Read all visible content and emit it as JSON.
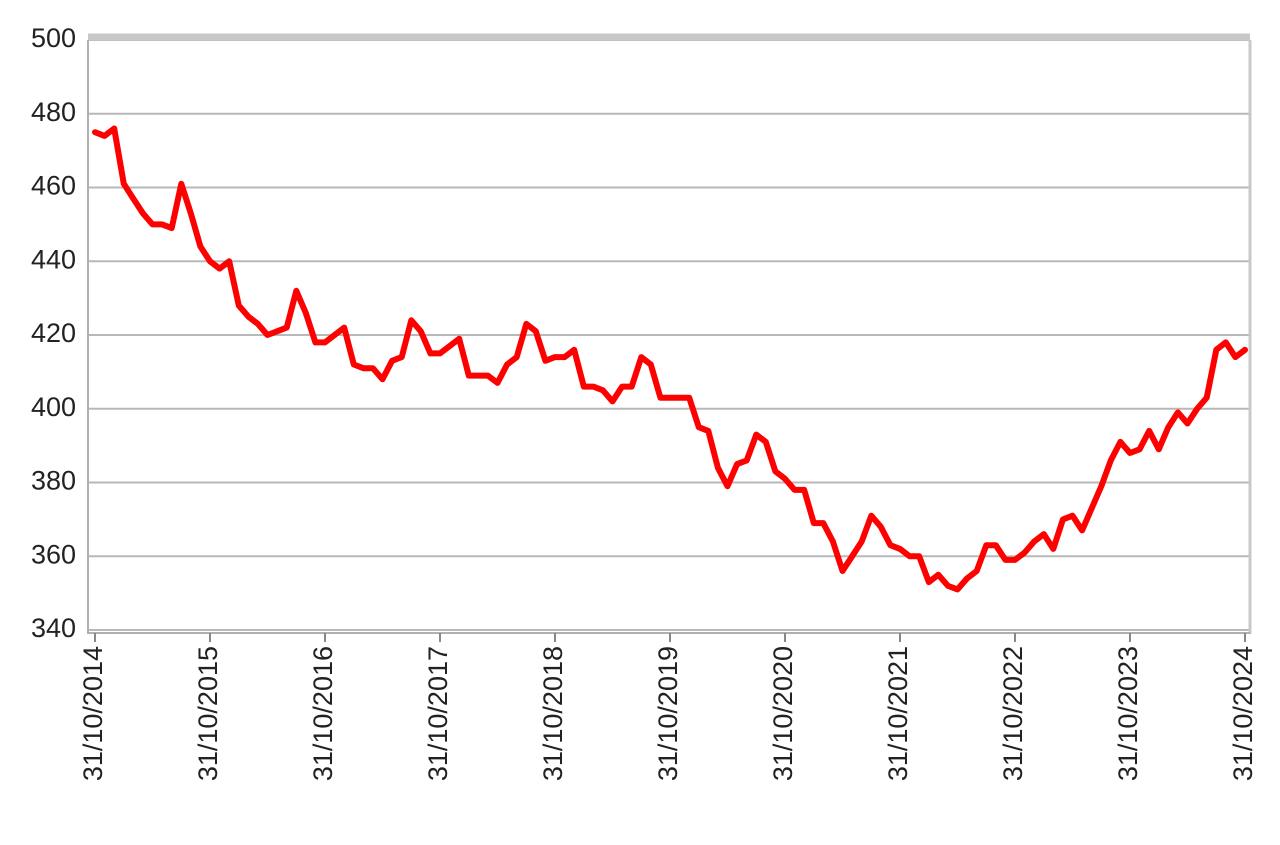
{
  "chart_data": {
    "type": "line",
    "categories": [
      "31/10/2014",
      null,
      null,
      null,
      null,
      null,
      null,
      null,
      null,
      null,
      null,
      null,
      "31/10/2015",
      null,
      null,
      null,
      null,
      null,
      null,
      null,
      null,
      null,
      null,
      null,
      "31/10/2016",
      null,
      null,
      null,
      null,
      null,
      null,
      null,
      null,
      null,
      null,
      null,
      "31/10/2017",
      null,
      null,
      null,
      null,
      null,
      null,
      null,
      null,
      null,
      null,
      null,
      "31/10/2018",
      null,
      null,
      null,
      null,
      null,
      null,
      null,
      null,
      null,
      null,
      null,
      "31/10/2019",
      null,
      null,
      null,
      null,
      null,
      null,
      null,
      null,
      null,
      null,
      null,
      "31/10/2020",
      null,
      null,
      null,
      null,
      null,
      null,
      null,
      null,
      null,
      null,
      null,
      "31/10/2021",
      null,
      null,
      null,
      null,
      null,
      null,
      null,
      null,
      null,
      null,
      null,
      "31/10/2022",
      null,
      null,
      null,
      null,
      null,
      null,
      null,
      null,
      null,
      null,
      null,
      "31/10/2023",
      null,
      null,
      null,
      null,
      null,
      null,
      null,
      null,
      null,
      null,
      null,
      "31/10/2024"
    ],
    "values": [
      475,
      474,
      476,
      461,
      457,
      453,
      450,
      450,
      449,
      461,
      453,
      444,
      440,
      438,
      440,
      428,
      425,
      423,
      420,
      421,
      422,
      432,
      426,
      418,
      418,
      420,
      422,
      412,
      411,
      411,
      408,
      413,
      414,
      424,
      421,
      415,
      415,
      417,
      419,
      409,
      409,
      409,
      407,
      412,
      414,
      423,
      421,
      413,
      414,
      414,
      416,
      406,
      406,
      405,
      402,
      406,
      406,
      414,
      412,
      403,
      403,
      403,
      403,
      395,
      394,
      384,
      379,
      385,
      386,
      393,
      391,
      383,
      381,
      378,
      378,
      369,
      369,
      364,
      356,
      360,
      364,
      371,
      368,
      363,
      362,
      360,
      360,
      353,
      355,
      352,
      351,
      354,
      356,
      363,
      363,
      359,
      359,
      361,
      364,
      366,
      362,
      370,
      371,
      367,
      373,
      379,
      386,
      391,
      388,
      389,
      394,
      389,
      395,
      399,
      396,
      400,
      403,
      416,
      418,
      414,
      416
    ],
    "color": "#ff0000",
    "ylim": [
      340,
      500
    ],
    "yticks": [
      340,
      360,
      380,
      400,
      420,
      440,
      460,
      480,
      500
    ],
    "grid": true
  }
}
